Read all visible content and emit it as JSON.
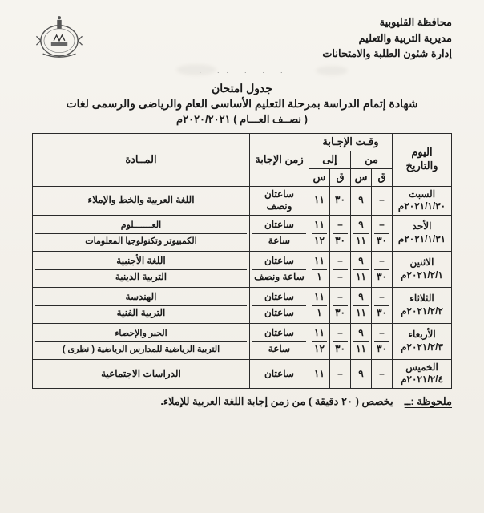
{
  "header": {
    "governorate": "محافظة القليوبية",
    "directorate": "مديرية التربية والتعليم",
    "department": "إدارة شئون الطلبة والامتحانات"
  },
  "title": {
    "line1": "جدول امتحان",
    "line2": "شهادة إتمام الدراسة بمرحلة التعليم الأساسى العام والرياضى والرسمى لغات",
    "line3": "( نصــف العـــام ) ٢٠٢٠/٢٠٢١م"
  },
  "table": {
    "headers": {
      "day": "اليوم والتاريخ",
      "time": "وقـت الإجـابة",
      "from": "من",
      "to": "إلى",
      "q": "ق",
      "h": "س",
      "duration": "زمن الإجابة",
      "subject": "المــادة"
    },
    "rows": [
      {
        "day": "السبت",
        "date": "٢٠٢١/١/٣٠م",
        "slots": [
          {
            "from_q": "–",
            "from_h": "٩",
            "to_q": "٣٠",
            "to_h": "١١",
            "duration": "ساعتان ونصف",
            "subject": "اللغة العربية والخط والإملاء"
          }
        ]
      },
      {
        "day": "الأحد",
        "date": "٢٠٢١/١/٣١م",
        "slots": [
          {
            "from_q": "–",
            "from_h": "٩",
            "to_q": "–",
            "to_h": "١١",
            "duration": "ساعتان",
            "subject": "العـــــــلوم"
          },
          {
            "from_q": "٣٠",
            "from_h": "١١",
            "to_q": "٣٠",
            "to_h": "١٢",
            "duration": "ساعة",
            "subject": "الكمبيوتر وتكنولوجيا المعلومات"
          }
        ]
      },
      {
        "day": "الاثنين",
        "date": "٢٠٢١/٢/١م",
        "slots": [
          {
            "from_q": "–",
            "from_h": "٩",
            "to_q": "–",
            "to_h": "١١",
            "duration": "ساعتان",
            "subject": "اللغة الأجنبية"
          },
          {
            "from_q": "٣٠",
            "from_h": "١١",
            "to_q": "–",
            "to_h": "١",
            "duration": "ساعة ونصف",
            "subject": "التربية الدينية"
          }
        ]
      },
      {
        "day": "الثلاثاء",
        "date": "٢٠٢١/٢/٢م",
        "slots": [
          {
            "from_q": "–",
            "from_h": "٩",
            "to_q": "–",
            "to_h": "١١",
            "duration": "ساعتان",
            "subject": "الهندسة"
          },
          {
            "from_q": "٣٠",
            "from_h": "١١",
            "to_q": "٣٠",
            "to_h": "١",
            "duration": "ساعتان",
            "subject": "التربية الفنية"
          }
        ]
      },
      {
        "day": "الأربعاء",
        "date": "٢٠٢١/٢/٣م",
        "slots": [
          {
            "from_q": "–",
            "from_h": "٩",
            "to_q": "–",
            "to_h": "١١",
            "duration": "ساعتان",
            "subject": "الجبر والإحصاء"
          },
          {
            "from_q": "٣٠",
            "from_h": "١١",
            "to_q": "٣٠",
            "to_h": "١٢",
            "duration": "ساعة",
            "subject": "التربية الرياضية للمدارس الرياضية ( نظرى )"
          }
        ]
      },
      {
        "day": "الخميس",
        "date": "٢٠٢١/٢/٤م",
        "slots": [
          {
            "from_q": "–",
            "from_h": "٩",
            "to_q": "–",
            "to_h": "١١",
            "duration": "ساعتان",
            "subject": "الدراسات الاجتماعية"
          }
        ]
      }
    ]
  },
  "footer": {
    "label": "ملحوظة :ــ",
    "text": "يخصص ( ٢٠ دقيقة ) من زمن إجابة اللغة العربية للإملاء."
  },
  "style": {
    "border_color": "#2a2a2a",
    "background": "#f4f2ed",
    "text_color": "#1a1a1a",
    "title_fontsize": 14,
    "body_fontsize": 12
  }
}
